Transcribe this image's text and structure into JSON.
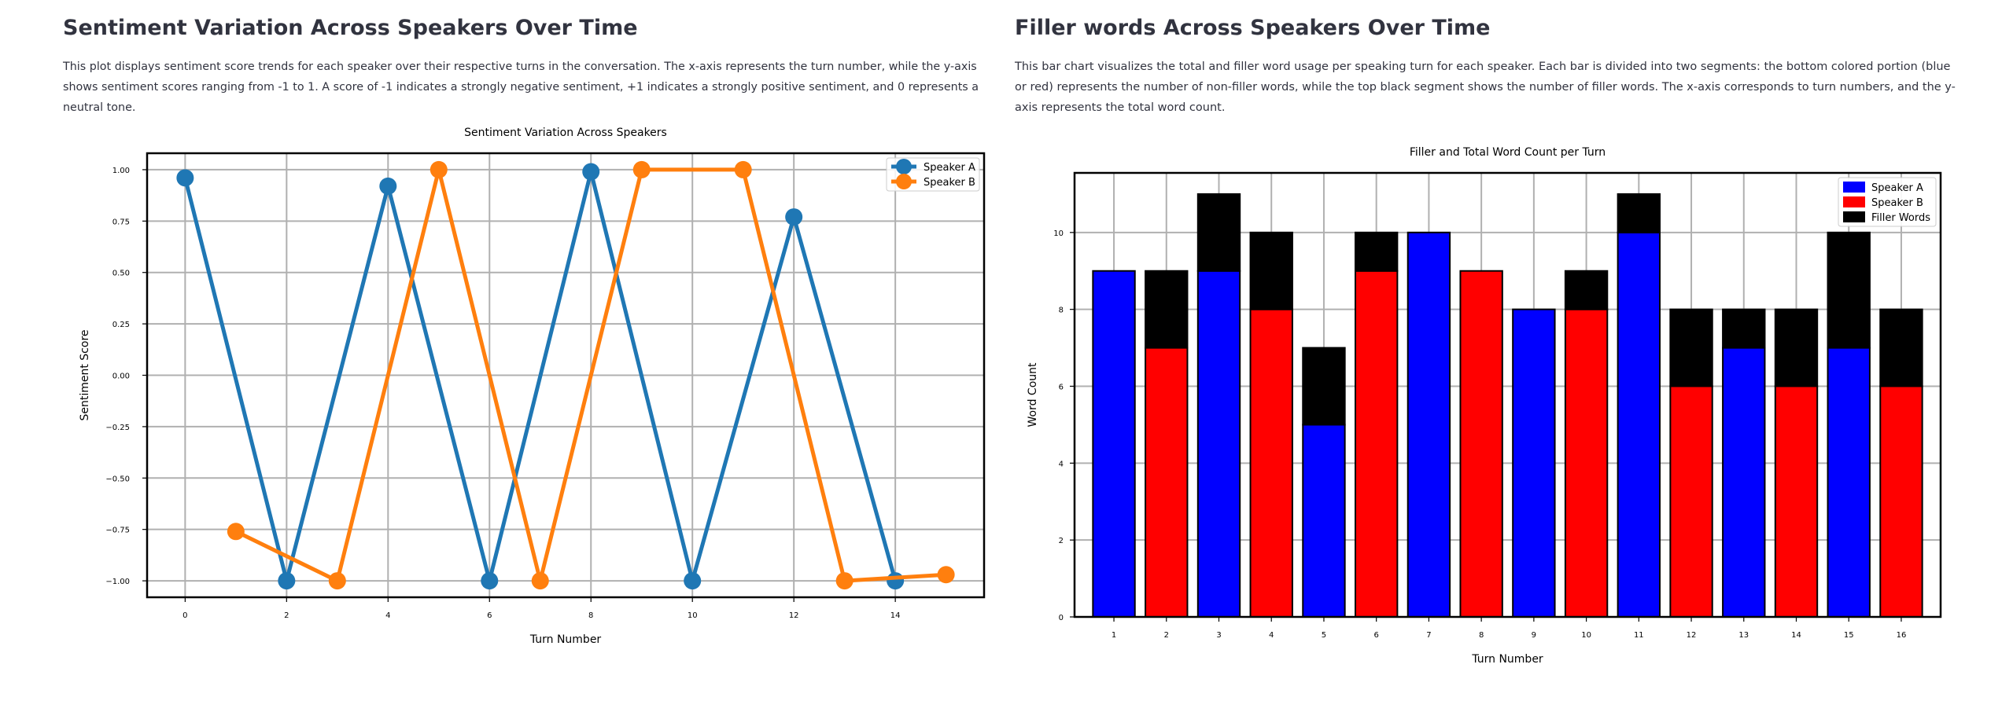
{
  "sentiment_section": {
    "title": "Sentiment Variation Across Speakers Over Time",
    "description": "This plot displays sentiment score trends for each speaker over their respective turns in the conversation. The x-axis represents the turn number, while the y-axis shows sentiment scores ranging from -1 to 1. A score of -1 indicates a strongly negative sentiment, +1 indicates a strongly positive sentiment, and 0 represents a neutral tone."
  },
  "filler_section": {
    "title": "Filler words Across Speakers Over Time",
    "description": "This bar chart visualizes the total and filler word usage per speaking turn for each speaker. Each bar is divided into two segments: the bottom colored portion (blue or red) represents the number of non-filler words, while the top black segment shows the number of filler words. The x-axis corresponds to turn numbers, and the y-axis represents the total word count."
  },
  "chart_data": [
    {
      "type": "line",
      "title": "Sentiment Variation Across Speakers",
      "xlabel": "Turn Number",
      "ylabel": "Sentiment Score",
      "xlim": [
        -0.75,
        15.75
      ],
      "ylim": [
        -1.08,
        1.08
      ],
      "xticks": [
        0,
        2,
        4,
        6,
        8,
        10,
        12,
        14
      ],
      "yticks": [
        1.0,
        0.75,
        0.5,
        0.25,
        0.0,
        -0.25,
        -0.5,
        -0.75,
        -1.0
      ],
      "ytick_labels": [
        "1.00",
        "0.75",
        "0.50",
        "0.25",
        "0.00",
        "−0.25",
        "−0.50",
        "−0.75",
        "−1.00"
      ],
      "grid": true,
      "legend": "top-right",
      "series": [
        {
          "name": "Speaker A",
          "color": "#1f77b4",
          "x": [
            0,
            2,
            4,
            6,
            8,
            10,
            12,
            14
          ],
          "y": [
            0.96,
            -1.0,
            0.92,
            -1.0,
            0.99,
            -1.0,
            0.77,
            -1.0
          ]
        },
        {
          "name": "Speaker B",
          "color": "#ff7f0e",
          "x": [
            1,
            3,
            5,
            7,
            9,
            11,
            13,
            15
          ],
          "y": [
            -0.76,
            -1.0,
            1.0,
            -1.0,
            1.0,
            1.0,
            -1.0,
            -0.97
          ]
        }
      ]
    },
    {
      "type": "bar",
      "stacked": true,
      "title": "Filler and Total Word Count per Turn",
      "xlabel": "Turn Number",
      "ylabel": "Word Count",
      "categories": [
        1,
        2,
        3,
        4,
        5,
        6,
        7,
        8,
        9,
        10,
        11,
        12,
        13,
        14,
        15,
        16
      ],
      "speaker": [
        "A",
        "B",
        "A",
        "B",
        "A",
        "B",
        "A",
        "B",
        "A",
        "B",
        "A",
        "B",
        "A",
        "B",
        "A",
        "B"
      ],
      "non_filler_words": [
        9,
        7,
        9,
        8,
        5,
        9,
        10,
        9,
        8,
        8,
        10,
        6,
        7,
        6,
        7,
        6
      ],
      "filler_words": [
        0,
        2,
        2,
        2,
        2,
        1,
        0,
        0,
        0,
        1,
        1,
        2,
        1,
        2,
        3,
        2
      ],
      "total_words": [
        9,
        9,
        11,
        10,
        7,
        10,
        10,
        9,
        8,
        9,
        11,
        8,
        8,
        8,
        10,
        8
      ],
      "ylim": [
        0,
        11.55
      ],
      "yticks": [
        0,
        2,
        4,
        6,
        8,
        10
      ],
      "grid": true,
      "legend": "top-right",
      "legend_entries": [
        {
          "name": "Speaker A",
          "color": "#0000ff"
        },
        {
          "name": "Speaker B",
          "color": "#ff0000"
        },
        {
          "name": "Filler Words",
          "color": "#000000"
        }
      ]
    }
  ]
}
